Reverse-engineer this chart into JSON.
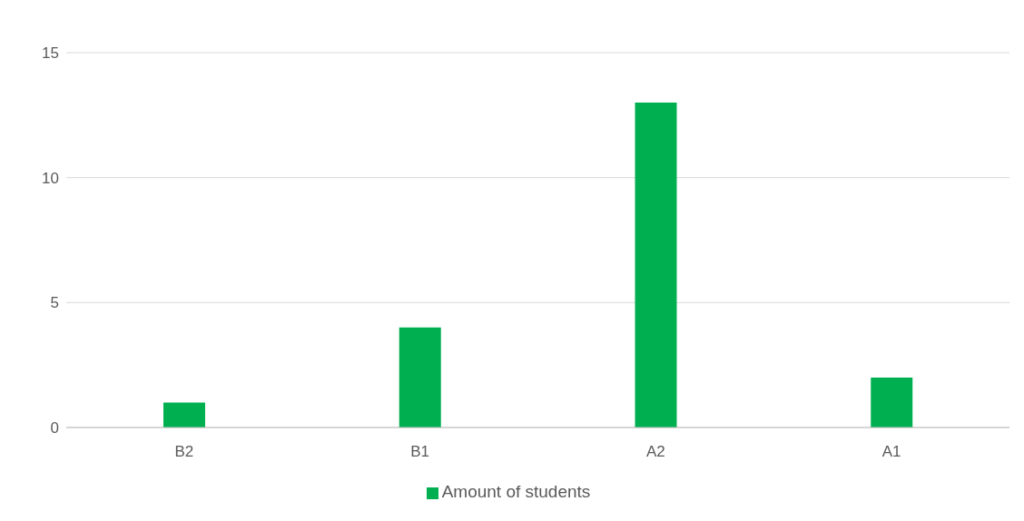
{
  "chart_data": {
    "type": "bar",
    "categories": [
      "B2",
      "B1",
      "A2",
      "A1"
    ],
    "series": [
      {
        "name": "Amount of students",
        "color": "#00b050",
        "values": [
          1,
          4,
          13,
          2
        ]
      }
    ],
    "ylim": [
      0,
      15
    ],
    "yticks": [
      0,
      5,
      10,
      15
    ],
    "grid": "y",
    "legend": "bottom"
  }
}
